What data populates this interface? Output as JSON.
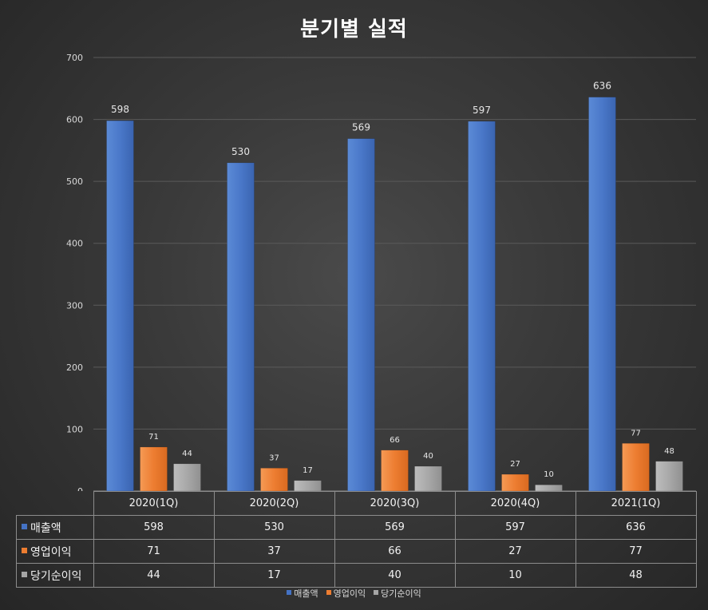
{
  "chart_data": {
    "type": "bar",
    "title": "분기별 실적",
    "categories": [
      "2020(1Q)",
      "2020(2Q)",
      "2020(3Q)",
      "2020(4Q)",
      "2021(1Q)"
    ],
    "series": [
      {
        "name": "매출액",
        "values": [
          598,
          530,
          569,
          597,
          636
        ],
        "color": "#4472c4"
      },
      {
        "name": "영업이익",
        "values": [
          71,
          37,
          66,
          27,
          77
        ],
        "color": "#ed7d31"
      },
      {
        "name": "당기순이익",
        "values": [
          44,
          17,
          40,
          10,
          48
        ],
        "color": "#a5a5a5"
      }
    ],
    "ylim": [
      0,
      700
    ],
    "yticks": [
      0,
      100,
      200,
      300,
      400,
      500,
      600,
      700
    ],
    "grid": true,
    "legend": "bottom",
    "data_table": true
  }
}
